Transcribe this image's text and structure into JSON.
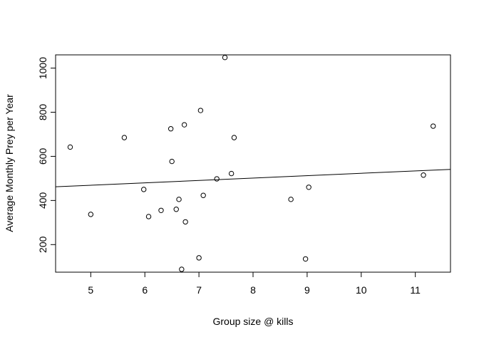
{
  "chart_data": {
    "type": "scatter",
    "title": "",
    "xlabel": "Group size @ kills",
    "ylabel": "Average Monthly Prey per Year",
    "xlim": [
      4.35,
      11.65
    ],
    "ylim": [
      75,
      1060
    ],
    "xticks": [
      5,
      6,
      7,
      8,
      9,
      10,
      11
    ],
    "yticks": [
      200,
      400,
      600,
      800,
      1000
    ],
    "grid": false,
    "points": [
      {
        "x": 4.62,
        "y": 642
      },
      {
        "x": 5.0,
        "y": 337
      },
      {
        "x": 5.62,
        "y": 685
      },
      {
        "x": 5.98,
        "y": 450
      },
      {
        "x": 6.07,
        "y": 327
      },
      {
        "x": 6.3,
        "y": 355
      },
      {
        "x": 6.48,
        "y": 725
      },
      {
        "x": 6.5,
        "y": 577
      },
      {
        "x": 6.58,
        "y": 360
      },
      {
        "x": 6.63,
        "y": 405
      },
      {
        "x": 6.68,
        "y": 88
      },
      {
        "x": 6.73,
        "y": 743
      },
      {
        "x": 6.75,
        "y": 303
      },
      {
        "x": 7.0,
        "y": 140
      },
      {
        "x": 7.03,
        "y": 808
      },
      {
        "x": 7.08,
        "y": 423
      },
      {
        "x": 7.33,
        "y": 498
      },
      {
        "x": 7.48,
        "y": 1048
      },
      {
        "x": 7.6,
        "y": 522
      },
      {
        "x": 7.65,
        "y": 685
      },
      {
        "x": 8.7,
        "y": 405
      },
      {
        "x": 8.97,
        "y": 135
      },
      {
        "x": 9.03,
        "y": 460
      },
      {
        "x": 11.15,
        "y": 515
      },
      {
        "x": 11.33,
        "y": 737
      }
    ],
    "fit_line": {
      "x": [
        4.35,
        11.65
      ],
      "y": [
        462,
        541
      ]
    }
  }
}
